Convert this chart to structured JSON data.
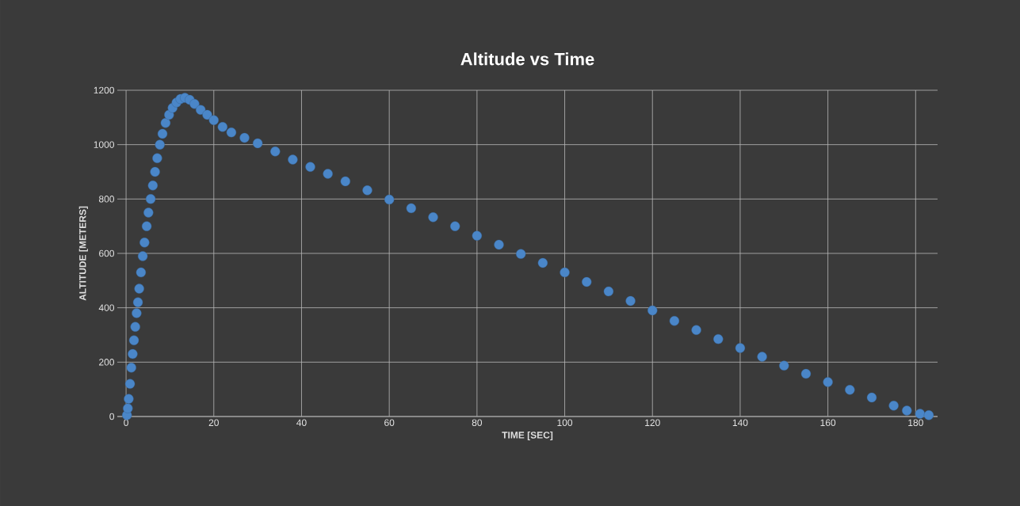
{
  "chart_data": {
    "type": "scatter",
    "title": "Altitude vs Time",
    "xlabel": "TIME [SEC]",
    "ylabel": "ALTITUDE [METERS]",
    "x": [
      0.2,
      0.4,
      0.6,
      0.9,
      1.2,
      1.5,
      1.8,
      2.1,
      2.4,
      2.7,
      3.0,
      3.4,
      3.8,
      4.2,
      4.7,
      5.1,
      5.6,
      6.1,
      6.6,
      7.1,
      7.7,
      8.3,
      9.0,
      9.8,
      10.6,
      11.5,
      12.4,
      13.4,
      14.5,
      15.6,
      17,
      18.5,
      20,
      22,
      24,
      27,
      30,
      34,
      38,
      42,
      46,
      50,
      55,
      60,
      65,
      70,
      75,
      80,
      85,
      90,
      95,
      100,
      105,
      110,
      115,
      120,
      125,
      130,
      135,
      140,
      145,
      150,
      155,
      160,
      165,
      170,
      175,
      178,
      181,
      183
    ],
    "values": [
      5,
      30,
      65,
      120,
      180,
      230,
      280,
      330,
      380,
      420,
      470,
      530,
      590,
      640,
      700,
      750,
      800,
      850,
      900,
      950,
      1000,
      1040,
      1080,
      1110,
      1135,
      1155,
      1168,
      1172,
      1165,
      1150,
      1128,
      1110,
      1090,
      1065,
      1045,
      1025,
      1005,
      975,
      945,
      918,
      893,
      865,
      832,
      798,
      766,
      733,
      700,
      665,
      632,
      598,
      565,
      530,
      495,
      460,
      425,
      390,
      352,
      318,
      285,
      252,
      220,
      187,
      157,
      127,
      98,
      70,
      40,
      22,
      10,
      5
    ],
    "color": "#4a86c8",
    "marker": "circle",
    "xlim": [
      -2,
      185
    ],
    "ylim": [
      0,
      1200
    ],
    "xticks": [
      0,
      20,
      40,
      60,
      80,
      100,
      120,
      140,
      160,
      180
    ],
    "yticks": [
      0,
      200,
      400,
      600,
      800,
      1000,
      1200
    ],
    "grid": true
  }
}
